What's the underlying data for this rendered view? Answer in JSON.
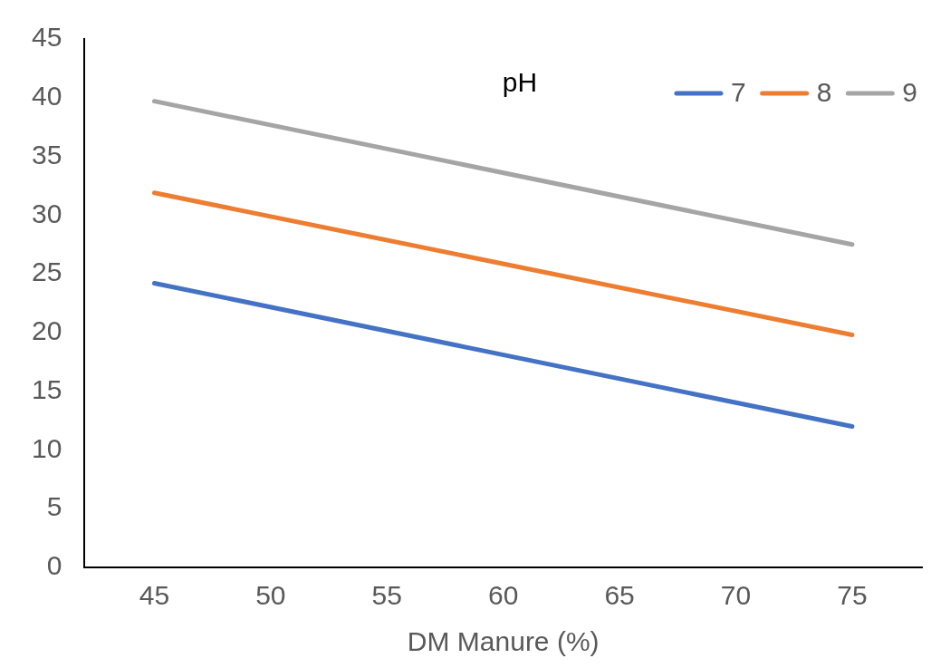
{
  "chart_data": {
    "type": "line",
    "xlabel": "DM Manure (%)",
    "legend_title": "pH",
    "legend": "top right",
    "grid": false,
    "marker": "none",
    "line_style": "solid",
    "xlim": [
      42,
      78
    ],
    "xticks": [
      45,
      50,
      55,
      60,
      65,
      70,
      75
    ],
    "ylim": [
      0,
      45
    ],
    "yticks": [
      0,
      5,
      10,
      15,
      20,
      25,
      30,
      35,
      40,
      45
    ],
    "x": [
      45,
      75
    ],
    "series": [
      {
        "name": "7",
        "color": "#4472c4",
        "values": [
          24.2,
          12.0
        ]
      },
      {
        "name": "8",
        "color": "#ed7d31",
        "values": [
          31.9,
          19.8
        ]
      },
      {
        "name": "9",
        "color": "#a5a5a5",
        "values": [
          39.7,
          27.5
        ]
      }
    ]
  }
}
